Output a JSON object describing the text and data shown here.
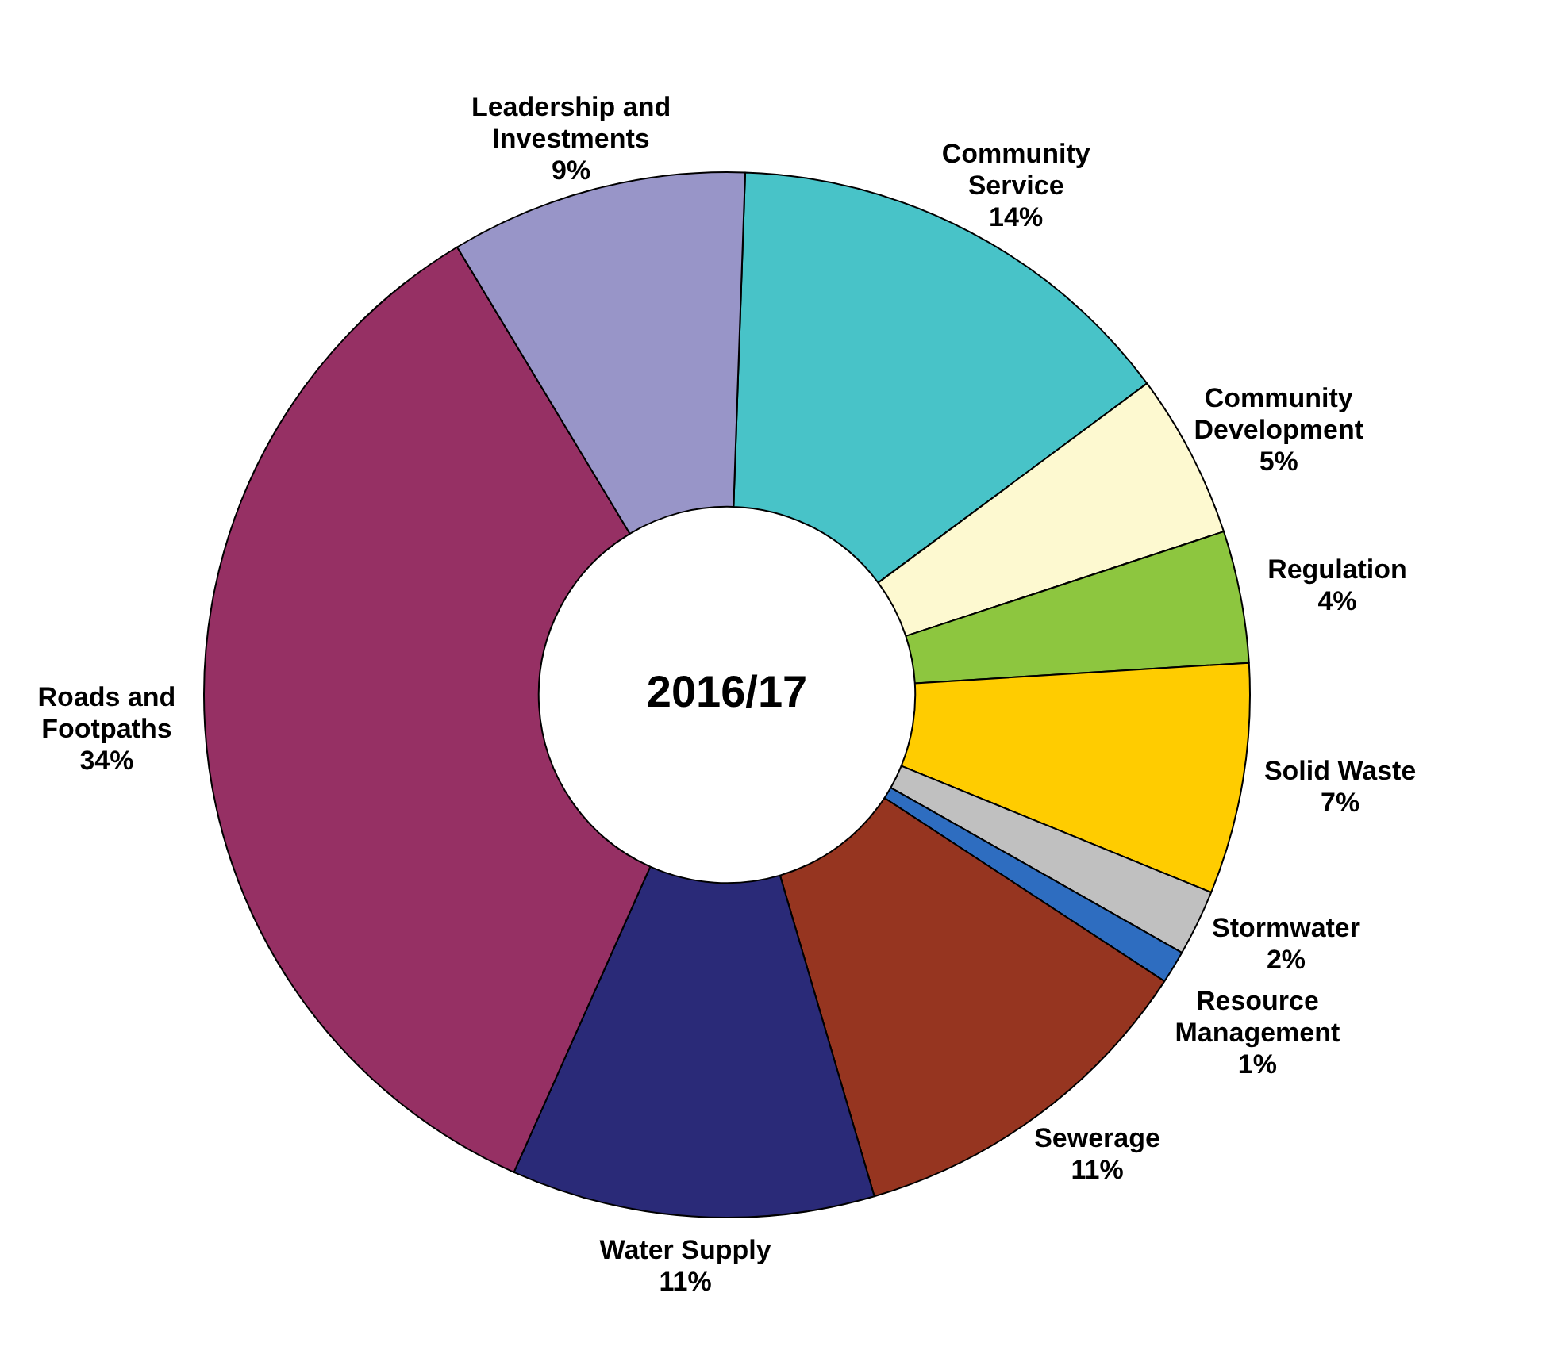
{
  "chart_data": {
    "type": "donut",
    "title": "2016/17",
    "categories": [
      "Community Service",
      "Community Development",
      "Regulation",
      "Solid Waste",
      "Stormwater",
      "Resource Management",
      "Sewerage",
      "Water Supply",
      "Roads and Footpaths",
      "Leadership and Investments"
    ],
    "values": [
      14,
      5,
      4,
      7,
      2,
      1,
      11,
      11,
      34,
      9
    ],
    "value_labels": [
      "14%",
      "5%",
      "4%",
      "7%",
      "2%",
      "1%",
      "11%",
      "11%",
      "34%",
      "9%"
    ],
    "colors": [
      "#48c3c8",
      "#fdf9d0",
      "#8dc63f",
      "#ffcc00",
      "#c0c0c0",
      "#2e6dc0",
      "#963520",
      "#2a2a78",
      "#963064",
      "#9895c8"
    ]
  }
}
